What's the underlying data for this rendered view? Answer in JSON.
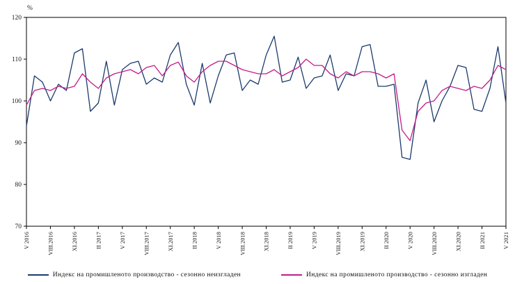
{
  "chart_data": {
    "type": "line",
    "title": "",
    "ylabel": "%",
    "xlabel": "",
    "ylim": [
      70,
      120
    ],
    "yticks": [
      70,
      80,
      90,
      100,
      110,
      120
    ],
    "grid": false,
    "legend_position": "bottom",
    "n_points": 61,
    "x_tick_every": 3,
    "x_tick_labels": [
      "V 2016",
      "VIII.2016",
      "XI.2016",
      "II 2017",
      "V 2017",
      "VIII.2017",
      "XI.2017",
      "II 2018",
      "V 2018",
      "VIII.2018",
      "XI.2018",
      "II 2019",
      "V 2019",
      "VIII.2019",
      "XI.2019",
      "II 2020",
      "V 2020",
      "VIII.2020",
      "XI.2020",
      "II 2021",
      "V 2021"
    ],
    "series": [
      {
        "name": "Индекс на промишленото производство - сезонно неизгладен",
        "color": "#1b3a6b",
        "values": [
          94.0,
          106.0,
          104.5,
          100.0,
          104.0,
          102.5,
          111.5,
          112.5,
          97.5,
          99.5,
          109.5,
          99.0,
          107.5,
          109.0,
          109.5,
          104.0,
          105.5,
          104.5,
          111.0,
          114.0,
          104.0,
          99.0,
          109.0,
          99.5,
          106.0,
          111.0,
          111.5,
          102.5,
          105.0,
          104.0,
          111.0,
          115.5,
          104.5,
          105.0,
          110.5,
          103.0,
          105.5,
          106.0,
          111.0,
          102.5,
          106.5,
          106.0,
          113.0,
          113.5,
          103.5,
          103.5,
          104.0,
          86.5,
          86.0,
          99.5,
          105.0,
          95.0,
          100.0,
          103.5,
          108.5,
          108.0,
          98.0,
          97.5,
          103.0,
          113.0,
          99.5
        ]
      },
      {
        "name": "Индекс на промишленото производство - сезонно изгладен",
        "color": "#c41b8a",
        "values": [
          99.0,
          102.5,
          103.0,
          102.5,
          103.5,
          103.0,
          103.5,
          106.5,
          104.5,
          103.0,
          105.5,
          106.5,
          107.0,
          107.5,
          106.5,
          108.0,
          108.5,
          106.0,
          108.5,
          109.3,
          106.0,
          104.5,
          107.0,
          108.5,
          109.5,
          109.5,
          108.5,
          107.5,
          107.0,
          106.5,
          106.5,
          107.5,
          106.0,
          107.0,
          108.0,
          110.0,
          108.5,
          108.5,
          106.5,
          105.5,
          107.0,
          106.0,
          107.0,
          107.0,
          106.5,
          105.5,
          106.5,
          93.0,
          90.5,
          97.5,
          99.5,
          100.0,
          102.5,
          103.5,
          103.0,
          102.5,
          103.5,
          103.0,
          105.0,
          108.5,
          107.5
        ]
      }
    ]
  }
}
